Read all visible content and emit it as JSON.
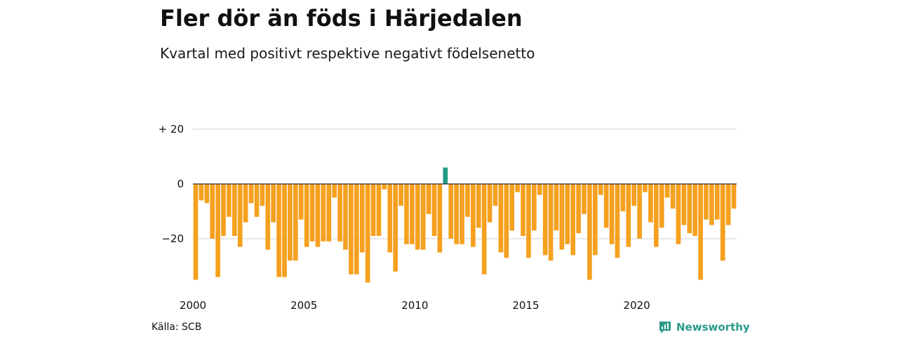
{
  "header": {
    "title": "Fler dör än föds i Härjedalen",
    "subtitle": "Kvartal med positivt respektive negativt födelsenetto"
  },
  "footer": {
    "source": "Källa: SCB",
    "brand": "Newsworthy"
  },
  "colors": {
    "negative": "#F5A01E",
    "positive": "#1E9A84",
    "grid": "#d9d9d9",
    "zero_line": "#333333",
    "brand": "#2a9a86"
  },
  "chart_data": {
    "type": "bar",
    "title": "Fler dör än föds i Härjedalen",
    "subtitle": "Kvartal med positivt respektive negativt födelsenetto",
    "xlabel": "",
    "ylabel": "",
    "x_ticks": [
      "2000",
      "2005",
      "2010",
      "2015",
      "2020"
    ],
    "y_ticks": [
      {
        "value": 20,
        "label": "+ 20"
      },
      {
        "value": 0,
        "label": "0"
      },
      {
        "value": -20,
        "label": "−20"
      }
    ],
    "ylim": [
      -37,
      22
    ],
    "start": "2000 Q1",
    "end": "2024 Q2",
    "grid": true,
    "categories": [
      "2000 Q1",
      "2000 Q2",
      "2000 Q3",
      "2000 Q4",
      "2001 Q1",
      "2001 Q2",
      "2001 Q3",
      "2001 Q4",
      "2002 Q1",
      "2002 Q2",
      "2002 Q3",
      "2002 Q4",
      "2003 Q1",
      "2003 Q2",
      "2003 Q3",
      "2003 Q4",
      "2004 Q1",
      "2004 Q2",
      "2004 Q3",
      "2004 Q4",
      "2005 Q1",
      "2005 Q2",
      "2005 Q3",
      "2005 Q4",
      "2006 Q1",
      "2006 Q2",
      "2006 Q3",
      "2006 Q4",
      "2007 Q1",
      "2007 Q2",
      "2007 Q3",
      "2007 Q4",
      "2008 Q1",
      "2008 Q2",
      "2008 Q3",
      "2008 Q4",
      "2009 Q1",
      "2009 Q2",
      "2009 Q3",
      "2009 Q4",
      "2010 Q1",
      "2010 Q2",
      "2010 Q3",
      "2010 Q4",
      "2011 Q1",
      "2011 Q2",
      "2011 Q3",
      "2011 Q4",
      "2012 Q1",
      "2012 Q2",
      "2012 Q3",
      "2012 Q4",
      "2013 Q1",
      "2013 Q2",
      "2013 Q3",
      "2013 Q4",
      "2014 Q1",
      "2014 Q2",
      "2014 Q3",
      "2014 Q4",
      "2015 Q1",
      "2015 Q2",
      "2015 Q3",
      "2015 Q4",
      "2016 Q1",
      "2016 Q2",
      "2016 Q3",
      "2016 Q4",
      "2017 Q1",
      "2017 Q2",
      "2017 Q3",
      "2017 Q4",
      "2018 Q1",
      "2018 Q2",
      "2018 Q3",
      "2018 Q4",
      "2019 Q1",
      "2019 Q2",
      "2019 Q3",
      "2019 Q4",
      "2020 Q1",
      "2020 Q2",
      "2020 Q3",
      "2020 Q4",
      "2021 Q1",
      "2021 Q2",
      "2021 Q3",
      "2021 Q4",
      "2022 Q1",
      "2022 Q2",
      "2022 Q3",
      "2022 Q4",
      "2023 Q1",
      "2023 Q2",
      "2023 Q3",
      "2023 Q4",
      "2024 Q1",
      "2024 Q2"
    ],
    "values": [
      -35,
      -6,
      -7,
      -20,
      -34,
      -19,
      -12,
      -19,
      -23,
      -14,
      -7,
      -12,
      -8,
      -24,
      -14,
      -34,
      -34,
      -28,
      -28,
      -13,
      -23,
      -21,
      -23,
      -21,
      -21,
      -5,
      -21,
      -24,
      -33,
      -33,
      -25,
      -36,
      -19,
      -19,
      -2,
      -25,
      -32,
      -8,
      -22,
      -22,
      -24,
      -24,
      -11,
      -19,
      -25,
      6,
      -20,
      -22,
      -22,
      -12,
      -23,
      -16,
      -33,
      -14,
      -8,
      -25,
      -27,
      -17,
      -3,
      -19,
      -27,
      -17,
      -4,
      -26,
      -28,
      -17,
      -24,
      -22,
      -26,
      -18,
      -11,
      -35,
      -26,
      -4,
      -16,
      -22,
      -27,
      -10,
      -23,
      -8,
      -20,
      -3,
      -14,
      -23,
      -16,
      -5,
      -9,
      -22,
      -15,
      -18,
      -19,
      -35,
      -13,
      -15,
      -13,
      -28,
      -15,
      -9
    ]
  }
}
